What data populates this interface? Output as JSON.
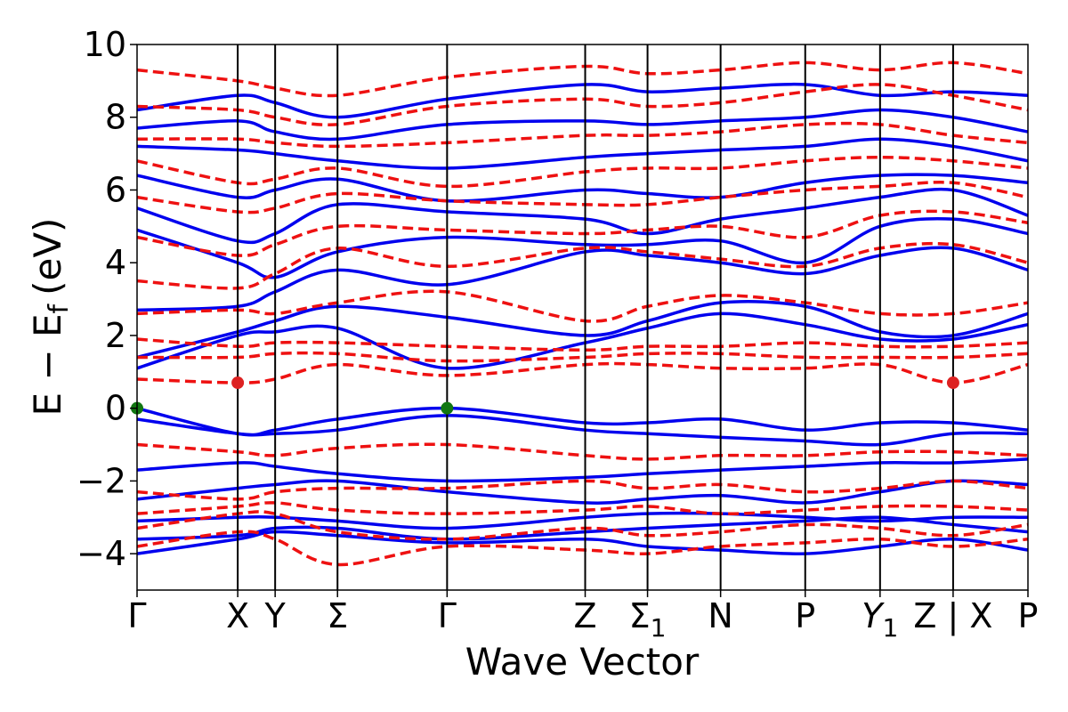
{
  "chart_data": {
    "type": "line",
    "xlabel": "Wave Vector",
    "ylabel": "E − E",
    "ylabel_sub": "f",
    "ylabel_unit": "(eV)",
    "ylim": [
      -5,
      10
    ],
    "yticks": [
      -4,
      -2,
      0,
      2,
      4,
      6,
      8,
      10
    ],
    "ytick_labels": [
      "−4",
      "−2",
      "0",
      "2",
      "4",
      "6",
      "8",
      "10"
    ],
    "kpath_ticks": [
      {
        "label": "Γ",
        "sub": "",
        "italic": false,
        "x": 0.0
      },
      {
        "label": "X",
        "sub": "",
        "italic": false,
        "x": 0.113
      },
      {
        "label": "Y",
        "sub": "",
        "italic": false,
        "x": 0.155
      },
      {
        "label": "Σ",
        "sub": "",
        "italic": false,
        "x": 0.225
      },
      {
        "label": "Γ",
        "sub": "",
        "italic": false,
        "x": 0.348
      },
      {
        "label": "Z",
        "sub": "",
        "italic": false,
        "x": 0.503
      },
      {
        "label": "Σ",
        "sub": "1",
        "italic": false,
        "x": 0.573
      },
      {
        "label": "N",
        "sub": "",
        "italic": false,
        "x": 0.655
      },
      {
        "label": "P",
        "sub": "",
        "italic": false,
        "x": 0.75
      },
      {
        "label": "Y",
        "sub": "1",
        "italic": true,
        "x": 0.834
      },
      {
        "label": "Z | X",
        "sub": "",
        "italic": false,
        "x": 0.916
      },
      {
        "label": "P",
        "sub": "",
        "italic": false,
        "x": 1.0
      }
    ],
    "grid": false,
    "legend": "none",
    "colors": {
      "spin_up": "#0000ee",
      "spin_down": "#ee1111",
      "vbm_marker": "#117711",
      "cbm_marker": "#dd2222"
    },
    "series": [
      {
        "style": "solid",
        "values": [
          -4.0,
          -3.6,
          -3.4,
          -3.5,
          -3.7,
          -3.6,
          -3.8,
          -3.9,
          -4.0,
          -3.8,
          -3.6,
          -3.9
        ]
      },
      {
        "style": "solid",
        "values": [
          -3.6,
          -3.5,
          -3.3,
          -3.3,
          -3.6,
          -3.4,
          -3.3,
          -3.2,
          -3.1,
          -3.0,
          -3.2,
          -3.4
        ]
      },
      {
        "style": "solid",
        "values": [
          -3.1,
          -3.0,
          -3.0,
          -3.1,
          -3.3,
          -3.0,
          -2.9,
          -2.9,
          -3.0,
          -3.1,
          -3.0,
          -3.0
        ]
      },
      {
        "style": "solid",
        "values": [
          -2.5,
          -2.2,
          -2.1,
          -2.0,
          -2.3,
          -2.6,
          -2.5,
          -2.4,
          -2.6,
          -2.3,
          -2.0,
          -2.1
        ]
      },
      {
        "style": "solid",
        "values": [
          -1.7,
          -1.5,
          -1.6,
          -1.8,
          -2.0,
          -1.9,
          -1.8,
          -1.7,
          -1.6,
          -1.5,
          -1.5,
          -1.4
        ]
      },
      {
        "style": "solid",
        "values": [
          -0.3,
          -0.7,
          -0.7,
          -0.6,
          -0.2,
          -0.6,
          -0.7,
          -0.8,
          -0.9,
          -1.0,
          -0.7,
          -0.7
        ]
      },
      {
        "style": "solid",
        "values": [
          0.0,
          -0.7,
          -0.6,
          -0.3,
          0.0,
          -0.4,
          -0.4,
          -0.3,
          -0.6,
          -0.4,
          -0.4,
          -0.6
        ]
      },
      {
        "style": "solid",
        "values": [
          1.1,
          2.0,
          2.1,
          2.2,
          1.1,
          1.8,
          2.2,
          2.6,
          2.3,
          1.9,
          1.9,
          2.3
        ]
      },
      {
        "style": "solid",
        "values": [
          1.4,
          2.1,
          2.4,
          2.8,
          2.5,
          2.0,
          2.4,
          2.9,
          2.8,
          2.1,
          2.0,
          2.6
        ]
      },
      {
        "style": "solid",
        "values": [
          2.7,
          2.8,
          3.2,
          3.8,
          3.4,
          4.3,
          4.2,
          4.0,
          3.7,
          4.2,
          4.4,
          3.8
        ]
      },
      {
        "style": "solid",
        "values": [
          4.9,
          4.0,
          3.6,
          4.3,
          4.7,
          4.5,
          4.5,
          4.6,
          4.0,
          5.0,
          5.2,
          4.8
        ]
      },
      {
        "style": "solid",
        "values": [
          5.5,
          4.6,
          4.8,
          5.6,
          5.4,
          5.2,
          4.8,
          5.2,
          5.5,
          5.8,
          6.0,
          5.3
        ]
      },
      {
        "style": "solid",
        "values": [
          6.4,
          5.8,
          6.0,
          6.3,
          5.7,
          6.0,
          5.9,
          5.8,
          6.2,
          6.4,
          6.4,
          6.2
        ]
      },
      {
        "style": "solid",
        "values": [
          7.2,
          7.1,
          7.0,
          6.8,
          6.6,
          6.9,
          7.0,
          7.1,
          7.2,
          7.4,
          7.2,
          6.8
        ]
      },
      {
        "style": "solid",
        "values": [
          7.7,
          7.9,
          7.6,
          7.4,
          7.8,
          7.9,
          7.8,
          7.9,
          8.0,
          8.2,
          8.0,
          7.6
        ]
      },
      {
        "style": "solid",
        "values": [
          8.2,
          8.6,
          8.4,
          8.0,
          8.5,
          8.9,
          8.7,
          8.8,
          8.9,
          8.6,
          8.7,
          8.6
        ]
      },
      {
        "style": "dashed",
        "values": [
          -3.8,
          -3.4,
          -3.6,
          -4.3,
          -3.8,
          -3.9,
          -4.0,
          -3.8,
          -3.7,
          -3.6,
          -3.8,
          -3.6
        ]
      },
      {
        "style": "dashed",
        "values": [
          -3.3,
          -2.9,
          -2.9,
          -3.4,
          -3.6,
          -3.3,
          -3.5,
          -3.4,
          -3.2,
          -3.3,
          -3.5,
          -3.2
        ]
      },
      {
        "style": "dashed",
        "values": [
          -2.9,
          -2.7,
          -2.6,
          -2.8,
          -2.9,
          -2.8,
          -2.7,
          -2.9,
          -2.8,
          -2.7,
          -2.7,
          -2.8
        ]
      },
      {
        "style": "dashed",
        "values": [
          -2.3,
          -2.5,
          -2.3,
          -2.2,
          -2.2,
          -2.0,
          -2.2,
          -2.1,
          -2.3,
          -2.2,
          -2.0,
          -2.2
        ]
      },
      {
        "style": "dashed",
        "values": [
          -1.0,
          -1.2,
          -1.3,
          -1.1,
          -1.0,
          -1.3,
          -1.4,
          -1.3,
          -1.3,
          -1.2,
          -1.2,
          -1.3
        ]
      },
      {
        "style": "dashed",
        "values": [
          0.8,
          0.7,
          0.8,
          1.2,
          0.9,
          1.2,
          1.2,
          1.1,
          1.1,
          1.2,
          0.7,
          1.2
        ]
      },
      {
        "style": "dashed",
        "values": [
          1.4,
          1.4,
          1.5,
          1.5,
          1.3,
          1.4,
          1.5,
          1.5,
          1.4,
          1.4,
          1.4,
          1.5
        ]
      },
      {
        "style": "dashed",
        "values": [
          1.9,
          1.7,
          1.8,
          1.8,
          1.7,
          1.6,
          1.7,
          1.7,
          1.8,
          1.7,
          1.7,
          1.8
        ]
      },
      {
        "style": "dashed",
        "values": [
          2.6,
          2.7,
          2.6,
          2.9,
          3.2,
          2.4,
          2.8,
          3.1,
          2.9,
          2.6,
          2.6,
          2.9
        ]
      },
      {
        "style": "dashed",
        "values": [
          3.5,
          3.3,
          3.7,
          4.4,
          3.9,
          4.4,
          4.3,
          4.1,
          3.9,
          4.4,
          4.5,
          4.0
        ]
      },
      {
        "style": "dashed",
        "values": [
          4.7,
          4.2,
          4.5,
          5.0,
          4.9,
          4.8,
          4.9,
          5.0,
          4.7,
          5.3,
          5.4,
          5.1
        ]
      },
      {
        "style": "dashed",
        "values": [
          5.8,
          5.4,
          5.5,
          5.9,
          5.7,
          5.6,
          5.6,
          5.8,
          6.0,
          6.1,
          6.2,
          5.8
        ]
      },
      {
        "style": "dashed",
        "values": [
          6.8,
          6.2,
          6.3,
          6.6,
          6.1,
          6.5,
          6.6,
          6.6,
          6.8,
          6.9,
          6.8,
          6.6
        ]
      },
      {
        "style": "dashed",
        "values": [
          7.4,
          7.4,
          7.3,
          7.2,
          7.3,
          7.5,
          7.5,
          7.6,
          7.8,
          7.8,
          7.5,
          7.3
        ]
      },
      {
        "style": "dashed",
        "values": [
          8.3,
          8.2,
          8.0,
          7.8,
          8.3,
          8.5,
          8.3,
          8.4,
          8.7,
          8.9,
          8.6,
          8.2
        ]
      },
      {
        "style": "dashed",
        "values": [
          9.3,
          9.0,
          8.8,
          8.6,
          9.1,
          9.4,
          9.2,
          9.3,
          9.5,
          9.3,
          9.5,
          9.2
        ]
      }
    ],
    "markers": [
      {
        "kind": "vbm",
        "x": 0.0,
        "y": 0.0
      },
      {
        "kind": "vbm",
        "x": 0.348,
        "y": 0.0
      },
      {
        "kind": "cbm",
        "x": 0.113,
        "y": 0.7
      },
      {
        "kind": "cbm",
        "x": 0.916,
        "y": 0.7
      }
    ]
  }
}
